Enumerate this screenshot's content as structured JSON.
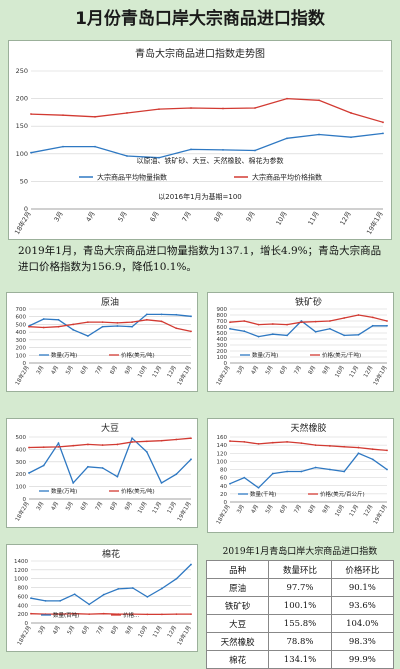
{
  "page_title": "1月份青岛口岸大宗商品进口指数",
  "paragraph": "2019年1月，青岛大宗商品进口物量指数为137.1，增长4.9%；青岛大宗商品进口价格指数为156.9，降低10.1%。",
  "colors": {
    "qty": "#2e78c2",
    "price": "#d23a32",
    "grid": "#d0d0d0"
  },
  "chart_data": [
    {
      "id": "main",
      "type": "line",
      "title": "青岛大宗商品进口指数走势图",
      "categories": [
        "18年2月",
        "3月",
        "4月",
        "5月",
        "6月",
        "7月",
        "8月",
        "9月",
        "10月",
        "11月",
        "12月",
        "19年1月"
      ],
      "ylim": [
        0,
        250
      ],
      "yticks": [
        0,
        50,
        100,
        150,
        200,
        250
      ],
      "grid": true,
      "notes": [
        "以原油、铁矿砂、大豆、天然橡胶、棉花为参数",
        "以2016年1月为基期=100"
      ],
      "series": [
        {
          "name": "大宗商品平均物量指数",
          "color": "#2e78c2",
          "values": [
            102,
            113,
            113,
            96,
            93,
            108,
            107,
            106,
            128,
            135,
            130,
            137
          ]
        },
        {
          "name": "大宗商品平均价格指数",
          "color": "#d23a32",
          "values": [
            172,
            170,
            167,
            174,
            181,
            183,
            182,
            183,
            200,
            197,
            174,
            157
          ]
        }
      ]
    },
    {
      "id": "crude",
      "type": "line",
      "title": "原油",
      "categories": [
        "18年2月",
        "3月",
        "4月",
        "5月",
        "6月",
        "7月",
        "8月",
        "9月",
        "10月",
        "11月",
        "12月",
        "19年1月"
      ],
      "ylim": [
        0,
        700
      ],
      "yticks": [
        0,
        100,
        200,
        300,
        400,
        500,
        600,
        700
      ],
      "grid": true,
      "series": [
        {
          "name": "数量(万吨)",
          "color": "#2e78c2",
          "values": [
            480,
            570,
            560,
            430,
            350,
            470,
            480,
            470,
            630,
            630,
            625,
            605
          ]
        },
        {
          "name": "价格(美元/吨)",
          "color": "#d23a32",
          "values": [
            470,
            460,
            470,
            500,
            530,
            530,
            520,
            530,
            560,
            540,
            450,
            410
          ]
        }
      ]
    },
    {
      "id": "iron",
      "type": "line",
      "title": "铁矿砂",
      "categories": [
        "18年2月",
        "3月",
        "4月",
        "5月",
        "6月",
        "7月",
        "8月",
        "9月",
        "10月",
        "11月",
        "12月",
        "19年1月"
      ],
      "ylim": [
        0,
        900
      ],
      "yticks": [
        0,
        100,
        200,
        300,
        400,
        500,
        600,
        700,
        800,
        900
      ],
      "grid": true,
      "series": [
        {
          "name": "数量(万吨)",
          "color": "#2e78c2",
          "values": [
            570,
            530,
            440,
            480,
            460,
            700,
            520,
            570,
            460,
            470,
            620,
            620
          ]
        },
        {
          "name": "价格(美元/千吨)",
          "color": "#d23a32",
          "values": [
            680,
            700,
            640,
            650,
            640,
            680,
            690,
            700,
            750,
            800,
            760,
            700
          ]
        }
      ]
    },
    {
      "id": "soy",
      "type": "line",
      "title": "大豆",
      "categories": [
        "18年2月",
        "3月",
        "4月",
        "5月",
        "6月",
        "7月",
        "8月",
        "9月",
        "10月",
        "11月",
        "12月",
        "19年1月"
      ],
      "ylim": [
        0,
        500
      ],
      "yticks": [
        0,
        100,
        200,
        300,
        400,
        500
      ],
      "grid": true,
      "series": [
        {
          "name": "数量(万吨)",
          "color": "#2e78c2",
          "values": [
            210,
            270,
            450,
            130,
            260,
            250,
            180,
            490,
            380,
            130,
            200,
            320
          ]
        },
        {
          "name": "价格(美元/吨)",
          "color": "#d23a32",
          "values": [
            415,
            418,
            420,
            430,
            440,
            435,
            440,
            460,
            465,
            470,
            480,
            490
          ]
        }
      ]
    },
    {
      "id": "rubber",
      "type": "line",
      "title": "天然橡胶",
      "categories": [
        "18年2月",
        "3月",
        "4月",
        "5月",
        "6月",
        "7月",
        "8月",
        "9月",
        "10月",
        "11月",
        "12月",
        "19年1月"
      ],
      "ylim": [
        0,
        160
      ],
      "yticks": [
        0,
        20,
        40,
        60,
        80,
        100,
        120,
        140,
        160
      ],
      "grid": true,
      "series": [
        {
          "name": "数量(千吨)",
          "color": "#2e78c2",
          "values": [
            45,
            60,
            35,
            70,
            75,
            75,
            85,
            80,
            75,
            120,
            105,
            80
          ]
        },
        {
          "name": "价格(美元/百公斤)",
          "color": "#d23a32",
          "values": [
            150,
            148,
            143,
            146,
            148,
            145,
            140,
            138,
            136,
            134,
            130,
            127
          ]
        }
      ]
    },
    {
      "id": "cotton",
      "type": "line",
      "title": "棉花",
      "categories": [
        "18年2月",
        "3月",
        "4月",
        "5月",
        "6月",
        "7月",
        "8月",
        "9月",
        "10月",
        "11月",
        "12月",
        "19年1月"
      ],
      "ylim": [
        0,
        1400
      ],
      "yticks": [
        0,
        200,
        400,
        600,
        800,
        1000,
        1200,
        1400
      ],
      "grid": true,
      "series": [
        {
          "name": "数量(百吨)",
          "color": "#2e78c2",
          "values": [
            560,
            500,
            500,
            650,
            420,
            640,
            770,
            790,
            590,
            780,
            1000,
            1320
          ]
        },
        {
          "name": "价格...",
          "color": "#d23a32",
          "values": [
            210,
            200,
            200,
            210,
            200,
            210,
            200,
            200,
            195,
            195,
            200,
            200
          ]
        }
      ]
    }
  ],
  "table": {
    "title": "2019年1月青岛口岸大宗商品进口指数",
    "headers": [
      "品种",
      "数量环比",
      "价格环比"
    ],
    "rows": [
      [
        "原油",
        "97.7%",
        "90.1%"
      ],
      [
        "铁矿砂",
        "100.1%",
        "93.6%"
      ],
      [
        "大豆",
        "155.8%",
        "104.0%"
      ],
      [
        "天然橡胶",
        "78.8%",
        "98.3%"
      ],
      [
        "棉花",
        "134.1%",
        "99.9%"
      ]
    ]
  }
}
